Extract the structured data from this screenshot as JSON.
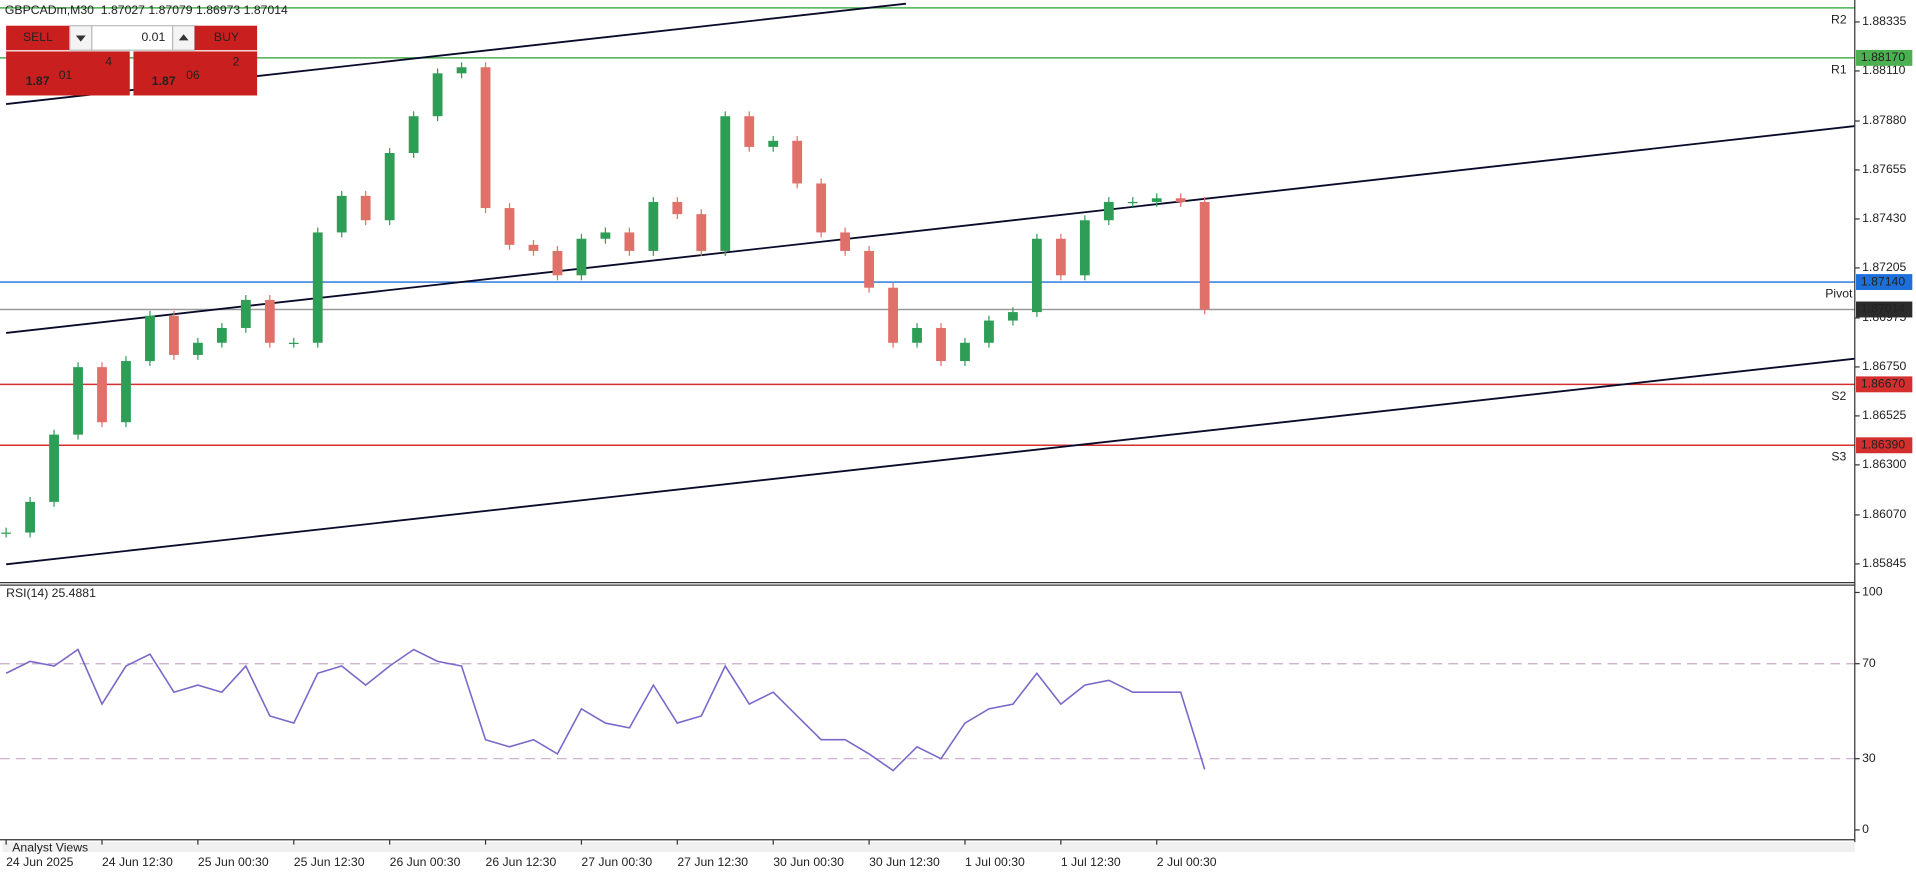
{
  "header": {
    "symbol_info": "GBPCADm,M30  1.87027 1.87079 1.86973 1.87014"
  },
  "trade_panel": {
    "sell": "SELL",
    "buy": "BUY",
    "volume": "0.01",
    "sell_price": {
      "big": "1.87",
      "main": "01",
      "sup": "4"
    },
    "buy_price": {
      "big": "1.87",
      "main": "06",
      "sup": "2"
    }
  },
  "footer": {
    "tab": "Analyst Views"
  },
  "chart_data": [
    {
      "type": "candlestick",
      "categories": [
        "24 Jun 2025",
        null,
        null,
        null,
        "24 Jun 12:30",
        null,
        null,
        null,
        "25 Jun 00:30",
        null,
        null,
        null,
        "25 Jun 12:30",
        null,
        null,
        null,
        "26 Jun 00:30",
        null,
        null,
        null,
        "26 Jun 12:30",
        null,
        null,
        null,
        "27 Jun 00:30",
        null,
        null,
        null,
        "27 Jun 12:30",
        null,
        null,
        null,
        "30 Jun 00:30",
        null,
        null,
        null,
        "30 Jun 12:30",
        null,
        null,
        null,
        "1 Jul 00:30",
        null,
        null,
        null,
        "1 Jul 12:30",
        null,
        null,
        null,
        "2 Jul 00:30",
        null,
        null
      ],
      "values": [
        1.85989,
        1.8613,
        1.86439,
        1.86749,
        1.86496,
        1.86777,
        1.86985,
        1.86805,
        1.86861,
        1.86929,
        1.87058,
        1.86861,
        1.86861,
        1.87368,
        1.87536,
        1.87424,
        1.87733,
        1.87902,
        1.88099,
        1.88127,
        1.8748,
        1.87311,
        1.87283,
        1.87171,
        1.87339,
        1.87368,
        1.87283,
        1.87508,
        1.87452,
        1.87283,
        1.87902,
        1.87761,
        1.87789,
        1.87593,
        1.87368,
        1.87283,
        1.87114,
        1.86861,
        1.86929,
        1.86777,
        1.86861,
        1.86963,
        1.87002,
        1.87339,
        1.87171,
        1.87424,
        1.87508,
        1.87508,
        1.87525,
        1.87508,
        1.87014
      ],
      "up_color": "#2e9e57",
      "down_color": "#e0706a",
      "ylim": [
        1.8577,
        1.88436
      ],
      "yticks": [
        {
          "value": 1.88335,
          "label": "1.88335"
        },
        {
          "value": 1.8811,
          "label": "1.88110"
        },
        {
          "value": 1.8788,
          "label": "1.87880"
        },
        {
          "value": 1.87655,
          "label": "1.87655"
        },
        {
          "value": 1.8743,
          "label": "1.87430"
        },
        {
          "value": 1.87205,
          "label": "1.87205"
        },
        {
          "value": 1.86975,
          "label": "1.86975"
        },
        {
          "value": 1.8675,
          "label": "1.86750"
        },
        {
          "value": 1.86525,
          "label": "1.86525"
        },
        {
          "value": 1.863,
          "label": "1.86300"
        },
        {
          "value": 1.8607,
          "label": "1.86070"
        },
        {
          "value": 1.85845,
          "label": "1.85845"
        }
      ],
      "levels": [
        {
          "name": "R2",
          "value": 1.884,
          "color": "#4caf50"
        },
        {
          "name": "R1",
          "value": 1.8817,
          "label": "1.88170",
          "color": "#4caf50"
        },
        {
          "name": "Pivot",
          "value": 1.8714,
          "label": "1.87140",
          "color": "#1e6fd9"
        },
        {
          "value": 1.87014,
          "label": "1.87014",
          "color": "#999999",
          "label_color": "#2b2b2b"
        },
        {
          "name": "S2",
          "value": 1.8667,
          "label": "1.86670",
          "color": "#d32f2f"
        },
        {
          "name": "S3",
          "value": 1.8639,
          "label": "1.86390",
          "color": "#d32f2f"
        }
      ]
    },
    {
      "type": "line",
      "title": "RSI(14) 25.4881",
      "values": [
        66,
        71,
        69,
        76,
        53,
        69,
        74,
        58,
        61,
        58,
        69,
        48,
        45,
        66,
        69,
        61,
        69,
        76,
        71,
        69,
        38,
        35,
        38,
        32,
        51,
        45,
        43,
        61,
        45,
        48,
        69,
        53,
        58,
        48,
        38,
        38,
        32,
        25,
        35,
        30,
        45,
        51,
        53,
        66,
        53,
        61,
        63,
        58,
        58,
        58,
        25.5
      ],
      "color": "#7b68c9",
      "ylim": [
        0,
        100
      ],
      "yticks": [
        0,
        30,
        70,
        100
      ],
      "dashed_levels": [
        30,
        70
      ]
    }
  ]
}
